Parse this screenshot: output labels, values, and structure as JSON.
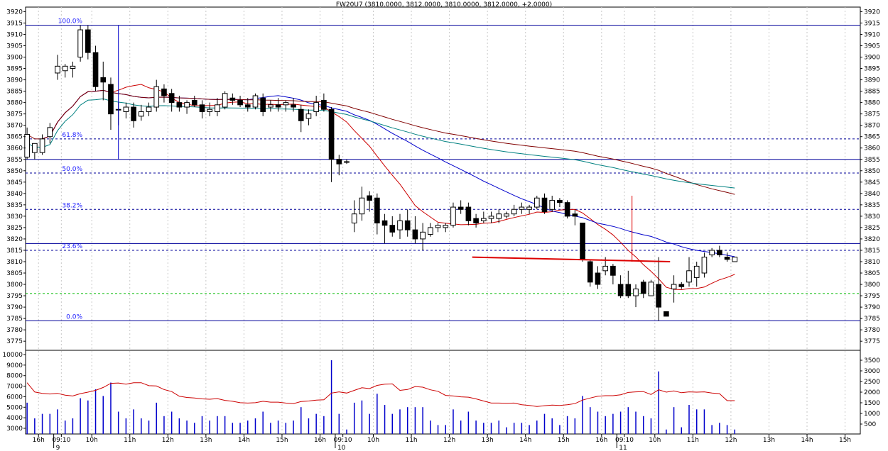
{
  "chart_data": {
    "type": "candlestick",
    "title": "FW20U7 (3810.0000, 3812.0000, 3810.0000, 3812.0000, +2.0000)",
    "price_axis": {
      "ylim": [
        3771,
        3922
      ],
      "ticks": [
        3775,
        3780,
        3785,
        3790,
        3795,
        3800,
        3805,
        3810,
        3815,
        3820,
        3825,
        3830,
        3835,
        3840,
        3845,
        3850,
        3855,
        3860,
        3865,
        3870,
        3875,
        3880,
        3885,
        3890,
        3895,
        3900,
        3905,
        3910,
        3915,
        3920
      ]
    },
    "volume_axis": {
      "left_ticks": [
        "3000",
        "4000",
        "5000",
        "6000",
        "7000",
        "8000",
        "9000",
        "10000"
      ],
      "right_ticks": [
        "500",
        "1000",
        "1500",
        "2000",
        "2500",
        "3000",
        "3500"
      ]
    },
    "time_labels": [
      {
        "label": "16h",
        "x": 1.5
      },
      {
        "label": "09:10",
        "x": 4.5
      },
      {
        "label": "10h",
        "x": 8.5
      },
      {
        "label": "11h",
        "x": 13.5
      },
      {
        "label": "12h",
        "x": 18.5
      },
      {
        "label": "13h",
        "x": 23.5
      },
      {
        "label": "14h",
        "x": 28.5
      },
      {
        "label": "15h",
        "x": 33.5
      },
      {
        "label": "16h",
        "x": 38.5
      },
      {
        "label": "09:10",
        "x": 41.5
      },
      {
        "label": "10h",
        "x": 45.5
      },
      {
        "label": "11h",
        "x": 50.5
      },
      {
        "label": "12h",
        "x": 55.5
      },
      {
        "label": "13h",
        "x": 60.5
      },
      {
        "label": "14h",
        "x": 65.5
      },
      {
        "label": "15h",
        "x": 70.5
      },
      {
        "label": "16h",
        "x": 75.5
      },
      {
        "label": "09:10",
        "x": 78.5
      },
      {
        "label": "10h",
        "x": 82.5
      },
      {
        "label": "11h",
        "x": 87.5
      },
      {
        "label": "12h",
        "x": 92.5
      },
      {
        "label": "13h",
        "x": 97.5
      },
      {
        "label": "14h",
        "x": 102.5
      },
      {
        "label": "15h",
        "x": 107.5
      }
    ],
    "day_labels": [
      {
        "label": "9",
        "x": 3.5
      },
      {
        "label": "10",
        "x": 40.5
      },
      {
        "label": "11",
        "x": 77.5
      }
    ],
    "x_range": [
      -0.2,
      109.5
    ],
    "fibonacci": [
      {
        "label": "100.0%",
        "value": 3914
      },
      {
        "label": "61.8%",
        "value": 3864
      },
      {
        "label": "50.0%",
        "value": 3849
      },
      {
        "label": "38.2%",
        "value": 3833
      },
      {
        "label": "23.6%",
        "value": 3815
      },
      {
        "label": "0.0%",
        "value": 3784
      }
    ],
    "solid_levels": [
      3914,
      3855,
      3818,
      3784
    ],
    "dashed_levels": [
      3864,
      3849,
      3833,
      3815
    ],
    "green_level": 3796,
    "trendline": {
      "from": [
        58.5,
        3812
      ],
      "to": [
        84.5,
        3810
      ],
      "color": "#dd0000"
    },
    "spikes": [
      {
        "x": 12,
        "from": 3855,
        "to": 3914
      },
      {
        "x": 79.5,
        "from": 3810,
        "to": 3839
      }
    ],
    "candles": [
      {
        "o": 3856,
        "h": 3869,
        "l": 3855,
        "c": 3866
      },
      {
        "o": 3858,
        "h": 3862,
        "l": 3855,
        "c": 3862
      },
      {
        "o": 3858,
        "h": 3866,
        "l": 3857,
        "c": 3864
      },
      {
        "o": 3865,
        "h": 3871,
        "l": 3862,
        "c": 3869
      },
      {
        "o": 3893,
        "h": 3901,
        "l": 3890,
        "c": 3896
      },
      {
        "o": 3894,
        "h": 3897,
        "l": 3891,
        "c": 3896
      },
      {
        "o": 3895,
        "h": 3898,
        "l": 3891,
        "c": 3896
      },
      {
        "o": 3900,
        "h": 3914,
        "l": 3898,
        "c": 3912
      },
      {
        "o": 3912,
        "h": 3914,
        "l": 3899,
        "c": 3902
      },
      {
        "o": 3902,
        "h": 3905,
        "l": 3885,
        "c": 3887
      },
      {
        "o": 3891,
        "h": 3898,
        "l": 3881,
        "c": 3889
      },
      {
        "o": 3888,
        "h": 3891,
        "l": 3868,
        "c": 3875
      },
      {
        "o": 3877,
        "h": 3880,
        "l": 3870,
        "c": 3877
      },
      {
        "o": 3876,
        "h": 3880,
        "l": 3873,
        "c": 3878
      },
      {
        "o": 3878,
        "h": 3880,
        "l": 3869,
        "c": 3872
      },
      {
        "o": 3874,
        "h": 3879,
        "l": 3872,
        "c": 3876
      },
      {
        "o": 3876,
        "h": 3880,
        "l": 3874,
        "c": 3878
      },
      {
        "o": 3878,
        "h": 3890,
        "l": 3876,
        "c": 3887
      },
      {
        "o": 3886,
        "h": 3888,
        "l": 3880,
        "c": 3883
      },
      {
        "o": 3884,
        "h": 3886,
        "l": 3876,
        "c": 3880
      },
      {
        "o": 3880,
        "h": 3883,
        "l": 3876,
        "c": 3878
      },
      {
        "o": 3878,
        "h": 3881,
        "l": 3875,
        "c": 3880
      },
      {
        "o": 3881,
        "h": 3883,
        "l": 3878,
        "c": 3879
      },
      {
        "o": 3879,
        "h": 3881,
        "l": 3873,
        "c": 3876
      },
      {
        "o": 3876,
        "h": 3880,
        "l": 3874,
        "c": 3877
      },
      {
        "o": 3876,
        "h": 3882,
        "l": 3874,
        "c": 3879
      },
      {
        "o": 3878,
        "h": 3885,
        "l": 3877,
        "c": 3884
      },
      {
        "o": 3882,
        "h": 3884,
        "l": 3879,
        "c": 3881
      },
      {
        "o": 3881,
        "h": 3883,
        "l": 3878,
        "c": 3879
      },
      {
        "o": 3879,
        "h": 3882,
        "l": 3876,
        "c": 3878
      },
      {
        "o": 3878,
        "h": 3884,
        "l": 3877,
        "c": 3883
      },
      {
        "o": 3882,
        "h": 3884,
        "l": 3874,
        "c": 3876
      },
      {
        "o": 3878,
        "h": 3881,
        "l": 3876,
        "c": 3879
      },
      {
        "o": 3879,
        "h": 3882,
        "l": 3876,
        "c": 3878
      },
      {
        "o": 3879,
        "h": 3881,
        "l": 3876,
        "c": 3880
      },
      {
        "o": 3879,
        "h": 3882,
        "l": 3876,
        "c": 3878
      },
      {
        "o": 3877,
        "h": 3879,
        "l": 3867,
        "c": 3872
      },
      {
        "o": 3873,
        "h": 3877,
        "l": 3870,
        "c": 3875
      },
      {
        "o": 3876,
        "h": 3883,
        "l": 3874,
        "c": 3880
      },
      {
        "o": 3881,
        "h": 3884,
        "l": 3876,
        "c": 3877
      },
      {
        "o": 3877,
        "h": 3878,
        "l": 3845,
        "c": 3855
      },
      {
        "o": 3855,
        "h": 3857,
        "l": 3848,
        "c": 3853
      },
      {
        "o": 3854,
        "h": 3855,
        "l": 3853,
        "c": 3854
      },
      {
        "o": 3827,
        "h": 3837,
        "l": 3823,
        "c": 3831
      },
      {
        "o": 3831,
        "h": 3843,
        "l": 3828,
        "c": 3838
      },
      {
        "o": 3839,
        "h": 3841,
        "l": 3832,
        "c": 3837
      },
      {
        "o": 3838,
        "h": 3840,
        "l": 3822,
        "c": 3827
      },
      {
        "o": 3828,
        "h": 3831,
        "l": 3818,
        "c": 3826
      },
      {
        "o": 3826,
        "h": 3830,
        "l": 3821,
        "c": 3823
      },
      {
        "o": 3824,
        "h": 3831,
        "l": 3820,
        "c": 3828
      },
      {
        "o": 3828,
        "h": 3833,
        "l": 3821,
        "c": 3824
      },
      {
        "o": 3824,
        "h": 3830,
        "l": 3818,
        "c": 3820
      },
      {
        "o": 3820,
        "h": 3827,
        "l": 3815,
        "c": 3823
      },
      {
        "o": 3822,
        "h": 3827,
        "l": 3821,
        "c": 3825
      },
      {
        "o": 3825,
        "h": 3827,
        "l": 3823,
        "c": 3826
      },
      {
        "o": 3825,
        "h": 3827,
        "l": 3823,
        "c": 3826
      },
      {
        "o": 3826,
        "h": 3836,
        "l": 3825,
        "c": 3834
      },
      {
        "o": 3834,
        "h": 3837,
        "l": 3831,
        "c": 3833
      },
      {
        "o": 3834,
        "h": 3836,
        "l": 3826,
        "c": 3828
      },
      {
        "o": 3829,
        "h": 3831,
        "l": 3825,
        "c": 3827
      },
      {
        "o": 3828,
        "h": 3832,
        "l": 3827,
        "c": 3829
      },
      {
        "o": 3829,
        "h": 3832,
        "l": 3827,
        "c": 3830
      },
      {
        "o": 3829,
        "h": 3833,
        "l": 3827,
        "c": 3831
      },
      {
        "o": 3830,
        "h": 3832,
        "l": 3829,
        "c": 3831
      },
      {
        "o": 3831,
        "h": 3835,
        "l": 3830,
        "c": 3833
      },
      {
        "o": 3833,
        "h": 3836,
        "l": 3831,
        "c": 3834
      },
      {
        "o": 3833,
        "h": 3835,
        "l": 3831,
        "c": 3834
      },
      {
        "o": 3834,
        "h": 3839,
        "l": 3833,
        "c": 3838
      },
      {
        "o": 3838,
        "h": 3840,
        "l": 3831,
        "c": 3832
      },
      {
        "o": 3833,
        "h": 3839,
        "l": 3832,
        "c": 3837
      },
      {
        "o": 3837,
        "h": 3838,
        "l": 3834,
        "c": 3836
      },
      {
        "o": 3836,
        "h": 3837,
        "l": 3829,
        "c": 3830
      },
      {
        "o": 3831,
        "h": 3833,
        "l": 3826,
        "c": 3830
      },
      {
        "o": 3827,
        "h": 3827,
        "l": 3810,
        "c": 3811
      },
      {
        "o": 3810,
        "h": 3811,
        "l": 3799,
        "c": 3801
      },
      {
        "o": 3805,
        "h": 3808,
        "l": 3798,
        "c": 3800
      },
      {
        "o": 3806,
        "h": 3812,
        "l": 3804,
        "c": 3808
      },
      {
        "o": 3808,
        "h": 3809,
        "l": 3800,
        "c": 3804
      },
      {
        "o": 3800,
        "h": 3804,
        "l": 3794,
        "c": 3795
      },
      {
        "o": 3800,
        "h": 3806,
        "l": 3794,
        "c": 3795
      },
      {
        "o": 3795,
        "h": 3800,
        "l": 3790,
        "c": 3798
      },
      {
        "o": 3801,
        "h": 3802,
        "l": 3794,
        "c": 3796
      },
      {
        "o": 3795,
        "h": 3802,
        "l": 3795,
        "c": 3801
      },
      {
        "o": 3800,
        "h": 3812,
        "l": 3784,
        "c": 3790
      },
      {
        "o": 3788,
        "h": 3788,
        "l": 3786,
        "c": 3786
      },
      {
        "o": 3798,
        "h": 3804,
        "l": 3792,
        "c": 3800
      },
      {
        "o": 3800,
        "h": 3801,
        "l": 3798,
        "c": 3799
      },
      {
        "o": 3801,
        "h": 3812,
        "l": 3799,
        "c": 3806
      },
      {
        "o": 3803,
        "h": 3810,
        "l": 3799,
        "c": 3808
      },
      {
        "o": 3805,
        "h": 3814,
        "l": 3803,
        "c": 3812
      },
      {
        "o": 3813,
        "h": 3816,
        "l": 3812,
        "c": 3815
      },
      {
        "o": 3815,
        "h": 3817,
        "l": 3812,
        "c": 3813
      },
      {
        "o": 3812,
        "h": 3814,
        "l": 3810,
        "c": 3811
      },
      {
        "o": 3810,
        "h": 3812,
        "l": 3810,
        "c": 3812
      }
    ],
    "ma_short": {
      "color": "#cc0000",
      "start": 0,
      "values": [
        3862,
        3865,
        3869,
        3873,
        3879,
        3884,
        3886,
        3887,
        3887,
        3886,
        3884,
        3882,
        3881,
        3880,
        3879,
        3879,
        3879,
        3879,
        3879,
        3879,
        3879,
        3878,
        3878,
        3878,
        3878,
        3878,
        3879,
        3879,
        3879,
        3879,
        3879,
        3878,
        3877,
        3875,
        3870,
        3863,
        3855,
        3846,
        3838,
        3834,
        3831,
        3829,
        3827,
        3825,
        3825,
        3825,
        3826,
        3826,
        3827,
        3828,
        3828,
        3829,
        3830,
        3831,
        3831,
        3831,
        3832,
        3831,
        3830,
        3828,
        3824,
        3818,
        3812,
        3808,
        3805,
        3803,
        3801,
        3799,
        3799,
        3799,
        3800,
        3800,
        3803
      ],
      "x_offset": 36
    }
  }
}
